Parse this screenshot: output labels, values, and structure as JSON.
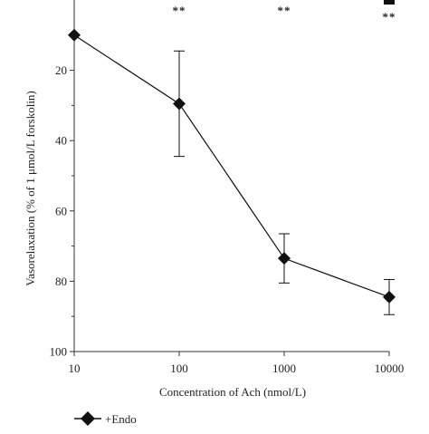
{
  "chart_data": {
    "type": "line",
    "x_scale": "log",
    "y_inverted": true,
    "xlabel": "Concentration of Ach (nmol/L)",
    "ylabel": "Vasorelaxation (% of 1 μmol/L forskolin)",
    "xlim": [
      10,
      10000
    ],
    "ylim": [
      0,
      100
    ],
    "x_ticks": [
      "10",
      "100",
      "1000",
      "10000"
    ],
    "y_ticks": [
      "20",
      "40",
      "60",
      "80",
      "100"
    ],
    "grid": false,
    "legend_position": "bottom-left",
    "series": [
      {
        "name": "+Endo",
        "color": "#111111",
        "marker": "diamond",
        "x": [
          10,
          100,
          1000,
          10000
        ],
        "y": [
          10,
          29.5,
          73.5,
          84.5
        ],
        "error": [
          0,
          15,
          7,
          5
        ]
      }
    ],
    "annotations": [
      {
        "x": 100,
        "text": "**"
      },
      {
        "x": 1000,
        "text": "**"
      },
      {
        "x": 10000,
        "text": "**"
      }
    ]
  }
}
